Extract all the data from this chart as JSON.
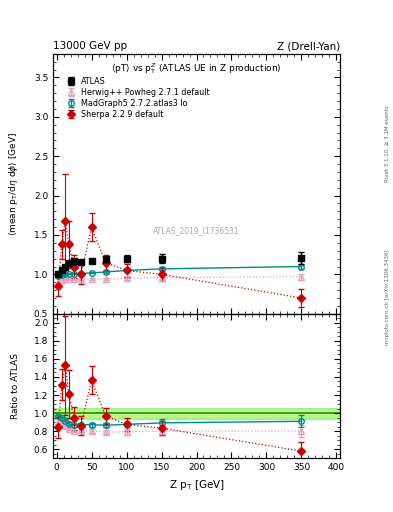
{
  "title_left": "13000 GeV pp",
  "title_right": "Z (Drell-Yan)",
  "main_title": "<pT> vs p$_T^Z$ (ATLAS UE in Z production)",
  "ylabel_main": "<mean p_T/d\\eta d\\phi> [GeV]",
  "ylabel_ratio": "Ratio to ATLAS",
  "xlabel": "Z p_T [GeV]",
  "right_label_top": "Rivet 3.1.10, ≥ 3.1M events",
  "right_label_bot": "mcplots.cern.ch [arXiv:1306.3436]",
  "watermark": "ATLAS_2019_I1736531",
  "atlas_x": [
    2.5,
    7.5,
    12.5,
    17.5,
    25.0,
    35.0,
    50.0,
    70.0,
    100.0,
    150.0,
    350.0
  ],
  "atlas_y": [
    1.01,
    1.05,
    1.1,
    1.14,
    1.17,
    1.16,
    1.17,
    1.19,
    1.2,
    1.2,
    1.21
  ],
  "atlas_yerr": [
    0.015,
    0.015,
    0.02,
    0.02,
    0.02,
    0.02,
    0.03,
    0.03,
    0.04,
    0.06,
    0.08
  ],
  "herwig_x": [
    2.5,
    7.5,
    12.5,
    17.5,
    25.0,
    35.0,
    50.0,
    70.0,
    100.0,
    150.0,
    350.0
  ],
  "herwig_y": [
    0.9,
    0.93,
    0.94,
    0.94,
    0.94,
    0.94,
    0.94,
    0.94,
    0.95,
    0.96,
    0.97
  ],
  "herwig_yerr": [
    0.005,
    0.005,
    0.005,
    0.005,
    0.005,
    0.005,
    0.01,
    0.01,
    0.015,
    0.02,
    0.04
  ],
  "madgraph_x": [
    2.5,
    7.5,
    12.5,
    17.5,
    25.0,
    35.0,
    50.0,
    70.0,
    100.0,
    150.0,
    350.0
  ],
  "madgraph_y": [
    0.975,
    0.99,
    1.0,
    1.005,
    1.01,
    1.01,
    1.02,
    1.03,
    1.05,
    1.07,
    1.1
  ],
  "madgraph_yerr": [
    0.005,
    0.005,
    0.005,
    0.005,
    0.005,
    0.005,
    0.008,
    0.01,
    0.015,
    0.02,
    0.03
  ],
  "sherpa_x": [
    2.5,
    7.5,
    12.5,
    17.5,
    25.0,
    35.0,
    50.0,
    70.0,
    100.0,
    150.0,
    350.0
  ],
  "sherpa_y": [
    0.85,
    1.38,
    1.68,
    1.38,
    1.1,
    1.0,
    1.6,
    1.15,
    1.05,
    1.0,
    0.7
  ],
  "sherpa_yerr": [
    0.12,
    0.18,
    0.6,
    0.3,
    0.15,
    0.12,
    0.18,
    0.1,
    0.08,
    0.08,
    0.12
  ],
  "atlas_color": "black",
  "herwig_color": "#e8a0c0",
  "madgraph_color": "#008b8b",
  "sherpa_color": "#cc0000",
  "ylim_main": [
    0.5,
    3.8
  ],
  "ylim_ratio": [
    0.5,
    2.1
  ],
  "xlim": [
    -5,
    405
  ]
}
